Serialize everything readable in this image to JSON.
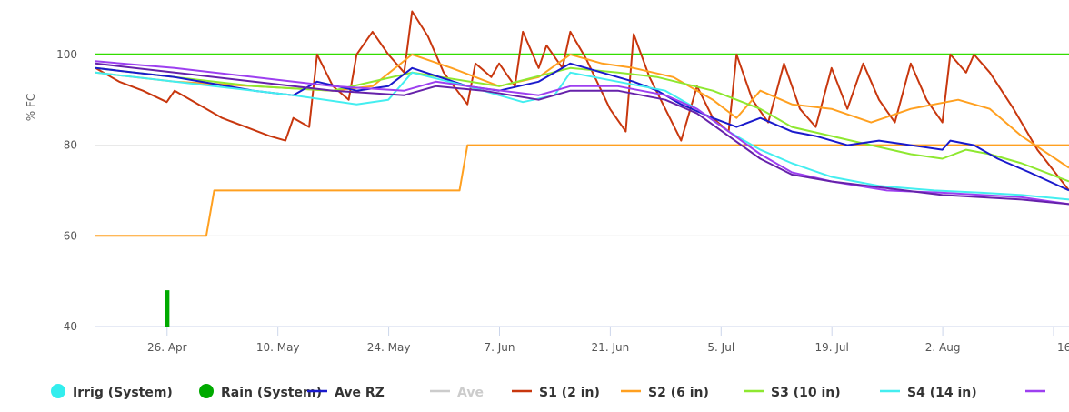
{
  "chart_data": {
    "type": "line",
    "ylabel": "% FC",
    "ylim": [
      40,
      110
    ],
    "yticks": [
      40,
      60,
      80,
      100
    ],
    "xstart": "2023-04-15",
    "xend": "2023-08-16",
    "xticks": [
      {
        "date": "2023-04-26",
        "label": "26. Apr"
      },
      {
        "date": "2023-05-10",
        "label": "10. May"
      },
      {
        "date": "2023-05-24",
        "label": "24. May"
      },
      {
        "date": "2023-06-07",
        "label": "7. Jun"
      },
      {
        "date": "2023-06-21",
        "label": "21. Jun"
      },
      {
        "date": "2023-07-05",
        "label": "5. Jul"
      },
      {
        "date": "2023-07-19",
        "label": "19. Jul"
      },
      {
        "date": "2023-08-02",
        "label": "2. Aug"
      },
      {
        "date": "2023-08-16",
        "label": "16"
      }
    ],
    "reference_lines": [
      {
        "y": 100,
        "color": "#33dd00"
      }
    ],
    "rain_bars": [
      {
        "date": "2023-04-24",
        "value": 48,
        "color": "#00aa00"
      }
    ],
    "series": [
      {
        "name": "S2 (6 in)",
        "color": "#ffa020",
        "step": true,
        "points": [
          [
            "2023-04-15",
            60
          ],
          [
            "2023-04-29",
            60
          ],
          [
            "2023-04-30",
            70
          ],
          [
            "2023-05-31",
            70
          ],
          [
            "2023-06-01",
            80
          ],
          [
            "2023-08-16",
            80
          ]
        ]
      },
      {
        "name": "S1 (2 in)",
        "color": "#c8370e",
        "points": [
          [
            "2023-04-15",
            97
          ],
          [
            "2023-04-18",
            94
          ],
          [
            "2023-04-21",
            92
          ],
          [
            "2023-04-24",
            89.5
          ],
          [
            "2023-04-25",
            92
          ],
          [
            "2023-04-28",
            89
          ],
          [
            "2023-05-01",
            86
          ],
          [
            "2023-05-04",
            84
          ],
          [
            "2023-05-07",
            82
          ],
          [
            "2023-05-09",
            81
          ],
          [
            "2023-05-10",
            86
          ],
          [
            "2023-05-12",
            84
          ],
          [
            "2023-05-13",
            100
          ],
          [
            "2023-05-15",
            93
          ],
          [
            "2023-05-17",
            90
          ],
          [
            "2023-05-18",
            100
          ],
          [
            "2023-05-20",
            105
          ],
          [
            "2023-05-22",
            100
          ],
          [
            "2023-05-24",
            96
          ],
          [
            "2023-05-25",
            109.5
          ],
          [
            "2023-05-27",
            104
          ],
          [
            "2023-05-29",
            96
          ],
          [
            "2023-06-01",
            89
          ],
          [
            "2023-06-02",
            98
          ],
          [
            "2023-06-04",
            95
          ],
          [
            "2023-06-05",
            98
          ],
          [
            "2023-06-07",
            93
          ],
          [
            "2023-06-08",
            105
          ],
          [
            "2023-06-10",
            97
          ],
          [
            "2023-06-11",
            102
          ],
          [
            "2023-06-13",
            97
          ],
          [
            "2023-06-14",
            105
          ],
          [
            "2023-06-16",
            99
          ],
          [
            "2023-06-19",
            88
          ],
          [
            "2023-06-21",
            83
          ],
          [
            "2023-06-22",
            104.5
          ],
          [
            "2023-06-24",
            95
          ],
          [
            "2023-06-26",
            88
          ],
          [
            "2023-06-28",
            81
          ],
          [
            "2023-06-30",
            93
          ],
          [
            "2023-07-02",
            86
          ],
          [
            "2023-07-04",
            83
          ],
          [
            "2023-07-05",
            100
          ],
          [
            "2023-07-07",
            90
          ],
          [
            "2023-07-09",
            85
          ],
          [
            "2023-07-11",
            98
          ],
          [
            "2023-07-13",
            88
          ],
          [
            "2023-07-15",
            84
          ],
          [
            "2023-07-17",
            97
          ],
          [
            "2023-07-19",
            88
          ],
          [
            "2023-07-21",
            98
          ],
          [
            "2023-07-23",
            90
          ],
          [
            "2023-07-25",
            85
          ],
          [
            "2023-07-27",
            98
          ],
          [
            "2023-07-29",
            90
          ],
          [
            "2023-07-31",
            85
          ],
          [
            "2023-08-01",
            100
          ],
          [
            "2023-08-03",
            96
          ],
          [
            "2023-08-04",
            100
          ],
          [
            "2023-08-06",
            96
          ],
          [
            "2023-08-09",
            88
          ],
          [
            "2023-08-12",
            79
          ],
          [
            "2023-08-16",
            70
          ]
        ]
      },
      {
        "name": "S2 (6 in)",
        "color": "#ffa020",
        "points": [
          [
            "2023-04-15",
            96
          ],
          [
            "2023-04-25",
            94
          ],
          [
            "2023-05-05",
            93
          ],
          [
            "2023-05-15",
            92
          ],
          [
            "2023-05-20",
            93
          ],
          [
            "2023-05-25",
            100
          ],
          [
            "2023-05-30",
            97
          ],
          [
            "2023-06-05",
            93
          ],
          [
            "2023-06-10",
            95
          ],
          [
            "2023-06-14",
            100
          ],
          [
            "2023-06-18",
            98
          ],
          [
            "2023-06-22",
            97
          ],
          [
            "2023-06-27",
            95
          ],
          [
            "2023-07-02",
            90
          ],
          [
            "2023-07-05",
            86
          ],
          [
            "2023-07-08",
            92
          ],
          [
            "2023-07-12",
            89
          ],
          [
            "2023-07-17",
            88
          ],
          [
            "2023-07-22",
            85
          ],
          [
            "2023-07-27",
            88
          ],
          [
            "2023-08-02",
            90
          ],
          [
            "2023-08-06",
            88
          ],
          [
            "2023-08-10",
            82
          ],
          [
            "2023-08-16",
            75
          ]
        ]
      },
      {
        "name": "S3 (10 in)",
        "color": "#8ee830",
        "points": [
          [
            "2023-04-15",
            97
          ],
          [
            "2023-04-25",
            95
          ],
          [
            "2023-05-05",
            93
          ],
          [
            "2023-05-15",
            92
          ],
          [
            "2023-05-25",
            96
          ],
          [
            "2023-06-05",
            93
          ],
          [
            "2023-06-14",
            97
          ],
          [
            "2023-06-20",
            96
          ],
          [
            "2023-06-25",
            95
          ],
          [
            "2023-07-02",
            92
          ],
          [
            "2023-07-08",
            88
          ],
          [
            "2023-07-12",
            84
          ],
          [
            "2023-07-17",
            82
          ],
          [
            "2023-07-22",
            80
          ],
          [
            "2023-07-27",
            78
          ],
          [
            "2023-07-31",
            77
          ],
          [
            "2023-08-03",
            79
          ],
          [
            "2023-08-06",
            78
          ],
          [
            "2023-08-10",
            76
          ],
          [
            "2023-08-16",
            72
          ]
        ]
      },
      {
        "name": "Ave RZ",
        "color": "#1a1acc",
        "points": [
          [
            "2023-04-15",
            97
          ],
          [
            "2023-04-25",
            95
          ],
          [
            "2023-05-05",
            92
          ],
          [
            "2023-05-10",
            91
          ],
          [
            "2023-05-13",
            94
          ],
          [
            "2023-05-18",
            92
          ],
          [
            "2023-05-22",
            93
          ],
          [
            "2023-05-25",
            97
          ],
          [
            "2023-06-01",
            93
          ],
          [
            "2023-06-05",
            92
          ],
          [
            "2023-06-10",
            94
          ],
          [
            "2023-06-14",
            98
          ],
          [
            "2023-06-18",
            96
          ],
          [
            "2023-06-22",
            94
          ],
          [
            "2023-06-25",
            92
          ],
          [
            "2023-06-28",
            89
          ],
          [
            "2023-07-02",
            86
          ],
          [
            "2023-07-05",
            84
          ],
          [
            "2023-07-08",
            86
          ],
          [
            "2023-07-12",
            83
          ],
          [
            "2023-07-15",
            82
          ],
          [
            "2023-07-19",
            80
          ],
          [
            "2023-07-23",
            81
          ],
          [
            "2023-07-27",
            80
          ],
          [
            "2023-07-31",
            79
          ],
          [
            "2023-08-01",
            81
          ],
          [
            "2023-08-04",
            80
          ],
          [
            "2023-08-07",
            77
          ],
          [
            "2023-08-11",
            74
          ],
          [
            "2023-08-16",
            70
          ]
        ]
      },
      {
        "name": "S4 (14 in)",
        "color": "#44eef0",
        "points": [
          [
            "2023-04-15",
            96
          ],
          [
            "2023-04-25",
            94
          ],
          [
            "2023-05-05",
            92
          ],
          [
            "2023-05-10",
            91
          ],
          [
            "2023-05-18",
            89
          ],
          [
            "2023-05-22",
            90
          ],
          [
            "2023-05-25",
            96
          ],
          [
            "2023-06-01",
            93
          ],
          [
            "2023-06-08",
            89.5
          ],
          [
            "2023-06-12",
            91
          ],
          [
            "2023-06-14",
            96
          ],
          [
            "2023-06-20",
            94
          ],
          [
            "2023-06-26",
            92
          ],
          [
            "2023-06-30",
            88
          ],
          [
            "2023-07-04",
            83
          ],
          [
            "2023-07-08",
            79
          ],
          [
            "2023-07-12",
            76
          ],
          [
            "2023-07-17",
            73
          ],
          [
            "2023-07-23",
            71
          ],
          [
            "2023-07-30",
            70
          ],
          [
            "2023-08-05",
            69.5
          ],
          [
            "2023-08-10",
            69
          ],
          [
            "2023-08-16",
            68
          ]
        ]
      },
      {
        "name": "",
        "color": "#9d3ff0",
        "points": [
          [
            "2023-04-15",
            98.5
          ],
          [
            "2023-04-25",
            97
          ],
          [
            "2023-05-05",
            95
          ],
          [
            "2023-05-15",
            93
          ],
          [
            "2023-05-24",
            92
          ],
          [
            "2023-05-28",
            94
          ],
          [
            "2023-06-03",
            92.5
          ],
          [
            "2023-06-10",
            91
          ],
          [
            "2023-06-14",
            93
          ],
          [
            "2023-06-20",
            93
          ],
          [
            "2023-06-26",
            91
          ],
          [
            "2023-06-30",
            88
          ],
          [
            "2023-07-04",
            83
          ],
          [
            "2023-07-08",
            78
          ],
          [
            "2023-07-12",
            74
          ],
          [
            "2023-07-17",
            72
          ],
          [
            "2023-07-24",
            70
          ],
          [
            "2023-07-31",
            69.5
          ],
          [
            "2023-08-05",
            69
          ],
          [
            "2023-08-10",
            68.5
          ],
          [
            "2023-08-16",
            67
          ]
        ]
      },
      {
        "name": "",
        "color": "#6622aa",
        "points": [
          [
            "2023-04-15",
            98
          ],
          [
            "2023-04-25",
            96
          ],
          [
            "2023-05-05",
            94
          ],
          [
            "2023-05-15",
            92
          ],
          [
            "2023-05-24",
            91
          ],
          [
            "2023-05-28",
            93
          ],
          [
            "2023-06-03",
            92
          ],
          [
            "2023-06-10",
            90
          ],
          [
            "2023-06-14",
            92
          ],
          [
            "2023-06-20",
            92
          ],
          [
            "2023-06-26",
            90
          ],
          [
            "2023-06-30",
            87
          ],
          [
            "2023-07-04",
            82
          ],
          [
            "2023-07-08",
            77
          ],
          [
            "2023-07-12",
            73.5
          ],
          [
            "2023-07-17",
            72
          ],
          [
            "2023-07-24",
            70.5
          ],
          [
            "2023-07-31",
            69
          ],
          [
            "2023-08-05",
            68.5
          ],
          [
            "2023-08-10",
            68
          ],
          [
            "2023-08-16",
            67
          ]
        ]
      }
    ],
    "legend": [
      {
        "label": "Irrig (System)",
        "color": "#33eeee",
        "symbol": "dot"
      },
      {
        "label": "Rain (System)",
        "color": "#00aa00",
        "symbol": "dot"
      },
      {
        "label": "Ave RZ",
        "color": "#1a1acc",
        "symbol": "line"
      },
      {
        "label": "Ave",
        "color": "#cccccc",
        "symbol": "line",
        "muted": true
      },
      {
        "label": "S1 (2 in)",
        "color": "#c8370e",
        "symbol": "line"
      },
      {
        "label": "S2 (6 in)",
        "color": "#ffa020",
        "symbol": "line"
      },
      {
        "label": "S3 (10 in)",
        "color": "#8ee830",
        "symbol": "line"
      },
      {
        "label": "S4 (14 in)",
        "color": "#44eef0",
        "symbol": "line"
      },
      {
        "label": "",
        "color": "#9d3ff0",
        "symbol": "line"
      }
    ]
  }
}
